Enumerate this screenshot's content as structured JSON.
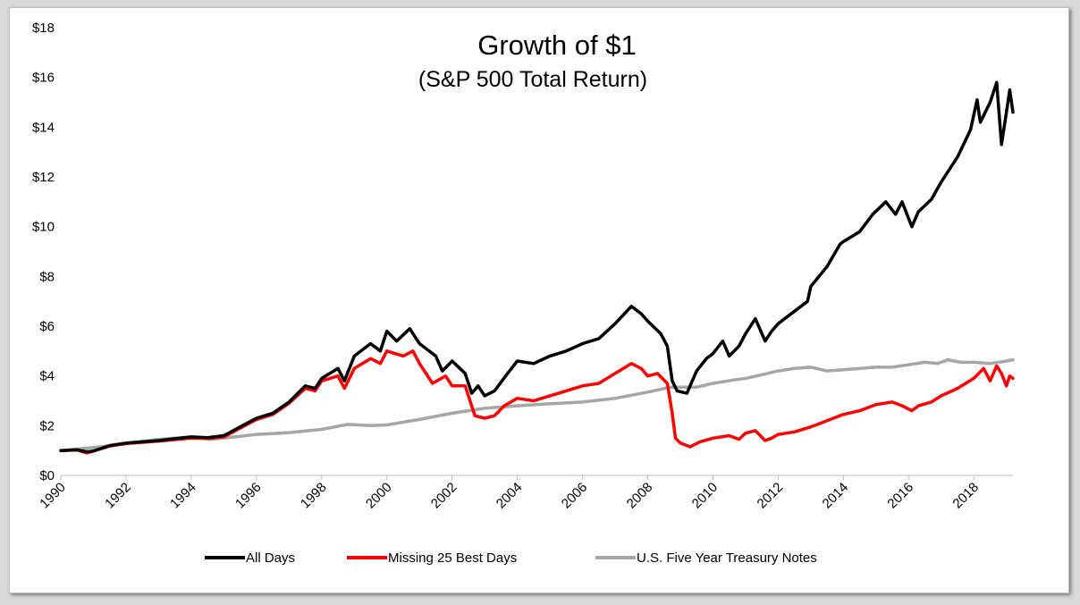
{
  "chart_data": {
    "type": "line",
    "title": "Growth of $1",
    "subtitle": "(S&P 500 Total Return)",
    "xlabel": "",
    "ylabel": "",
    "xlim": [
      1990,
      2019.2
    ],
    "ylim": [
      0,
      18
    ],
    "y_ticks": [
      {
        "value": 0,
        "label": "$0"
      },
      {
        "value": 2,
        "label": "$2"
      },
      {
        "value": 4,
        "label": "$4"
      },
      {
        "value": 6,
        "label": "$6"
      },
      {
        "value": 8,
        "label": "$8"
      },
      {
        "value": 10,
        "label": "$10"
      },
      {
        "value": 12,
        "label": "$12"
      },
      {
        "value": 14,
        "label": "$14"
      },
      {
        "value": 16,
        "label": "$16"
      },
      {
        "value": 18,
        "label": "$18"
      }
    ],
    "x_ticks": [
      {
        "value": 1990,
        "label": "1990"
      },
      {
        "value": 1992,
        "label": "1992"
      },
      {
        "value": 1994,
        "label": "1994"
      },
      {
        "value": 1996,
        "label": "1996"
      },
      {
        "value": 1998,
        "label": "1998"
      },
      {
        "value": 2000,
        "label": "2000"
      },
      {
        "value": 2002,
        "label": "2002"
      },
      {
        "value": 2004,
        "label": "2004"
      },
      {
        "value": 2006,
        "label": "2006"
      },
      {
        "value": 2008,
        "label": "2008"
      },
      {
        "value": 2010,
        "label": "2010"
      },
      {
        "value": 2012,
        "label": "2012"
      },
      {
        "value": 2014,
        "label": "2014"
      },
      {
        "value": 2016,
        "label": "2016"
      },
      {
        "value": 2018,
        "label": "2018"
      }
    ],
    "grid": false,
    "legend_position": "bottom",
    "series": [
      {
        "name": "All Days",
        "color": "#000000",
        "points": [
          [
            1990.0,
            1.0
          ],
          [
            1990.5,
            1.03
          ],
          [
            1990.8,
            0.95
          ],
          [
            1991.0,
            0.98
          ],
          [
            1991.5,
            1.2
          ],
          [
            1992.0,
            1.3
          ],
          [
            1993.0,
            1.4
          ],
          [
            1994.0,
            1.55
          ],
          [
            1994.5,
            1.52
          ],
          [
            1995.0,
            1.6
          ],
          [
            1995.5,
            1.95
          ],
          [
            1996.0,
            2.3
          ],
          [
            1996.5,
            2.5
          ],
          [
            1997.0,
            2.95
          ],
          [
            1997.5,
            3.6
          ],
          [
            1997.8,
            3.5
          ],
          [
            1998.0,
            3.9
          ],
          [
            1998.5,
            4.3
          ],
          [
            1998.7,
            3.8
          ],
          [
            1999.0,
            4.8
          ],
          [
            1999.5,
            5.3
          ],
          [
            1999.8,
            5.0
          ],
          [
            2000.0,
            5.8
          ],
          [
            2000.3,
            5.4
          ],
          [
            2000.7,
            5.9
          ],
          [
            2001.0,
            5.3
          ],
          [
            2001.5,
            4.8
          ],
          [
            2001.7,
            4.2
          ],
          [
            2002.0,
            4.6
          ],
          [
            2002.4,
            4.1
          ],
          [
            2002.6,
            3.3
          ],
          [
            2002.8,
            3.6
          ],
          [
            2003.0,
            3.2
          ],
          [
            2003.3,
            3.4
          ],
          [
            2003.7,
            4.1
          ],
          [
            2004.0,
            4.6
          ],
          [
            2004.5,
            4.5
          ],
          [
            2005.0,
            4.8
          ],
          [
            2005.5,
            5.0
          ],
          [
            2006.0,
            5.3
          ],
          [
            2006.5,
            5.5
          ],
          [
            2007.0,
            6.1
          ],
          [
            2007.5,
            6.8
          ],
          [
            2007.8,
            6.5
          ],
          [
            2008.0,
            6.2
          ],
          [
            2008.4,
            5.7
          ],
          [
            2008.6,
            5.2
          ],
          [
            2008.75,
            3.8
          ],
          [
            2008.9,
            3.4
          ],
          [
            2009.2,
            3.3
          ],
          [
            2009.5,
            4.2
          ],
          [
            2009.8,
            4.7
          ],
          [
            2010.0,
            4.9
          ],
          [
            2010.3,
            5.4
          ],
          [
            2010.5,
            4.8
          ],
          [
            2010.8,
            5.2
          ],
          [
            2011.0,
            5.7
          ],
          [
            2011.3,
            6.3
          ],
          [
            2011.6,
            5.4
          ],
          [
            2011.8,
            5.8
          ],
          [
            2012.0,
            6.1
          ],
          [
            2012.5,
            6.6
          ],
          [
            2012.9,
            7.0
          ],
          [
            2013.0,
            7.6
          ],
          [
            2013.5,
            8.4
          ],
          [
            2013.9,
            9.3
          ],
          [
            2014.0,
            9.4
          ],
          [
            2014.5,
            9.8
          ],
          [
            2014.9,
            10.5
          ],
          [
            2015.3,
            11.0
          ],
          [
            2015.6,
            10.5
          ],
          [
            2015.8,
            11.0
          ],
          [
            2016.1,
            10.0
          ],
          [
            2016.3,
            10.6
          ],
          [
            2016.7,
            11.1
          ],
          [
            2017.0,
            11.8
          ],
          [
            2017.5,
            12.8
          ],
          [
            2017.9,
            13.9
          ],
          [
            2018.1,
            15.1
          ],
          [
            2018.2,
            14.2
          ],
          [
            2018.5,
            15.0
          ],
          [
            2018.7,
            15.8
          ],
          [
            2018.85,
            13.3
          ],
          [
            2019.0,
            14.6
          ],
          [
            2019.1,
            15.5
          ],
          [
            2019.2,
            14.6
          ]
        ]
      },
      {
        "name": "Missing 25 Best Days",
        "color": "#ff0000",
        "points": [
          [
            1990.0,
            1.0
          ],
          [
            1990.5,
            1.02
          ],
          [
            1990.8,
            0.9
          ],
          [
            1991.0,
            0.98
          ],
          [
            1991.5,
            1.18
          ],
          [
            1992.0,
            1.28
          ],
          [
            1993.0,
            1.38
          ],
          [
            1994.0,
            1.5
          ],
          [
            1994.5,
            1.48
          ],
          [
            1995.0,
            1.55
          ],
          [
            1995.5,
            1.9
          ],
          [
            1996.0,
            2.25
          ],
          [
            1996.5,
            2.45
          ],
          [
            1997.0,
            2.9
          ],
          [
            1997.5,
            3.5
          ],
          [
            1997.8,
            3.4
          ],
          [
            1998.0,
            3.8
          ],
          [
            1998.5,
            4.0
          ],
          [
            1998.7,
            3.5
          ],
          [
            1999.0,
            4.3
          ],
          [
            1999.5,
            4.7
          ],
          [
            1999.8,
            4.5
          ],
          [
            2000.0,
            5.0
          ],
          [
            2000.5,
            4.8
          ],
          [
            2000.8,
            5.0
          ],
          [
            2001.0,
            4.5
          ],
          [
            2001.4,
            3.7
          ],
          [
            2001.8,
            4.0
          ],
          [
            2002.0,
            3.6
          ],
          [
            2002.4,
            3.6
          ],
          [
            2002.7,
            2.4
          ],
          [
            2003.0,
            2.3
          ],
          [
            2003.3,
            2.4
          ],
          [
            2003.6,
            2.8
          ],
          [
            2004.0,
            3.1
          ],
          [
            2004.5,
            3.0
          ],
          [
            2005.0,
            3.2
          ],
          [
            2005.5,
            3.4
          ],
          [
            2006.0,
            3.6
          ],
          [
            2006.5,
            3.7
          ],
          [
            2007.0,
            4.1
          ],
          [
            2007.5,
            4.5
          ],
          [
            2007.8,
            4.3
          ],
          [
            2008.0,
            4.0
          ],
          [
            2008.3,
            4.1
          ],
          [
            2008.6,
            3.7
          ],
          [
            2008.75,
            2.5
          ],
          [
            2008.85,
            1.5
          ],
          [
            2009.0,
            1.3
          ],
          [
            2009.3,
            1.15
          ],
          [
            2009.6,
            1.35
          ],
          [
            2010.0,
            1.5
          ],
          [
            2010.5,
            1.6
          ],
          [
            2010.8,
            1.45
          ],
          [
            2011.0,
            1.7
          ],
          [
            2011.3,
            1.8
          ],
          [
            2011.6,
            1.4
          ],
          [
            2011.8,
            1.5
          ],
          [
            2012.0,
            1.65
          ],
          [
            2012.5,
            1.75
          ],
          [
            2013.0,
            1.95
          ],
          [
            2013.5,
            2.2
          ],
          [
            2014.0,
            2.45
          ],
          [
            2014.5,
            2.6
          ],
          [
            2015.0,
            2.85
          ],
          [
            2015.5,
            2.95
          ],
          [
            2015.8,
            2.8
          ],
          [
            2016.1,
            2.6
          ],
          [
            2016.3,
            2.8
          ],
          [
            2016.7,
            2.95
          ],
          [
            2017.0,
            3.2
          ],
          [
            2017.5,
            3.5
          ],
          [
            2018.0,
            3.9
          ],
          [
            2018.3,
            4.3
          ],
          [
            2018.5,
            3.8
          ],
          [
            2018.7,
            4.4
          ],
          [
            2018.85,
            4.1
          ],
          [
            2019.0,
            3.6
          ],
          [
            2019.1,
            4.0
          ],
          [
            2019.2,
            3.9
          ]
        ]
      },
      {
        "name": "U.S. Five Year Treasury Notes",
        "color": "#a6a6a6",
        "points": [
          [
            1990.0,
            1.0
          ],
          [
            1991.0,
            1.12
          ],
          [
            1992.0,
            1.28
          ],
          [
            1993.0,
            1.45
          ],
          [
            1994.0,
            1.55
          ],
          [
            1994.6,
            1.45
          ],
          [
            1995.0,
            1.5
          ],
          [
            1996.0,
            1.65
          ],
          [
            1997.0,
            1.72
          ],
          [
            1998.0,
            1.85
          ],
          [
            1998.8,
            2.05
          ],
          [
            1999.5,
            2.0
          ],
          [
            2000.0,
            2.03
          ],
          [
            2001.0,
            2.25
          ],
          [
            2002.0,
            2.5
          ],
          [
            2003.0,
            2.7
          ],
          [
            2004.0,
            2.8
          ],
          [
            2005.0,
            2.88
          ],
          [
            2006.0,
            2.95
          ],
          [
            2007.0,
            3.1
          ],
          [
            2008.0,
            3.35
          ],
          [
            2008.7,
            3.55
          ],
          [
            2009.5,
            3.55
          ],
          [
            2010.0,
            3.7
          ],
          [
            2010.7,
            3.85
          ],
          [
            2011.0,
            3.9
          ],
          [
            2011.5,
            4.05
          ],
          [
            2012.0,
            4.2
          ],
          [
            2012.5,
            4.3
          ],
          [
            2013.0,
            4.35
          ],
          [
            2013.5,
            4.2
          ],
          [
            2014.0,
            4.25
          ],
          [
            2015.0,
            4.35
          ],
          [
            2015.5,
            4.35
          ],
          [
            2016.0,
            4.45
          ],
          [
            2016.5,
            4.55
          ],
          [
            2016.9,
            4.5
          ],
          [
            2017.2,
            4.65
          ],
          [
            2017.6,
            4.55
          ],
          [
            2018.0,
            4.55
          ],
          [
            2018.5,
            4.5
          ],
          [
            2019.0,
            4.6
          ],
          [
            2019.2,
            4.65
          ]
        ]
      }
    ]
  }
}
